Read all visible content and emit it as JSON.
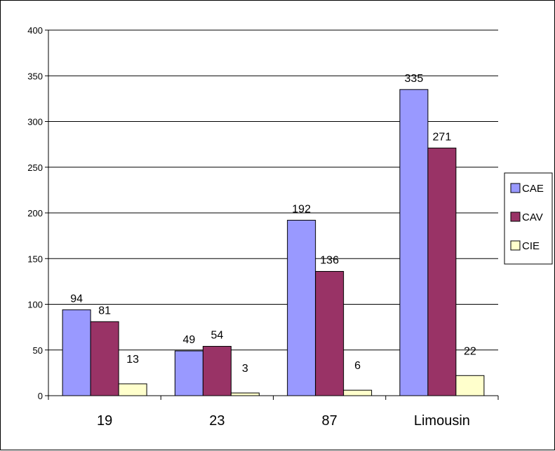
{
  "chart_data": {
    "type": "bar",
    "categories": [
      "19",
      "23",
      "87",
      "Limousin"
    ],
    "series": [
      {
        "name": "CAE",
        "values": [
          94,
          49,
          192,
          335
        ],
        "color": "#9999FF"
      },
      {
        "name": "CAV",
        "values": [
          81,
          54,
          136,
          271
        ],
        "color": "#993366"
      },
      {
        "name": "CIE",
        "values": [
          13,
          3,
          6,
          22
        ],
        "color": "#FFFFCC"
      }
    ],
    "ylim": [
      0,
      400
    ],
    "yticks": [
      0,
      50,
      100,
      150,
      200,
      250,
      300,
      350,
      400
    ],
    "grid": true,
    "legend_position": "right",
    "data_labels": true
  }
}
